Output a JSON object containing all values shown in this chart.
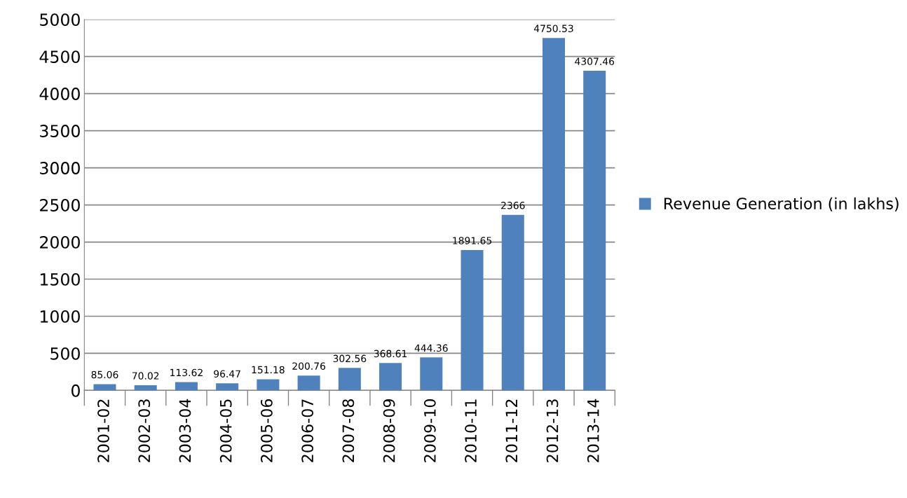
{
  "chart_data": {
    "type": "bar",
    "categories": [
      "2001-02",
      "2002-03",
      "2003-04",
      "2004-05",
      "2005-06",
      "2006-07",
      "2007-08",
      "2008-09",
      "2009-10",
      "2010-11",
      "2011-12",
      "2012-13",
      "2013-14"
    ],
    "series": [
      {
        "name": "Revenue Generation (in lakhs)",
        "color": "#4f81bd",
        "values": [
          85.06,
          70.02,
          113.62,
          96.47,
          151.18,
          200.76,
          302.56,
          368.61,
          444.36,
          1891.65,
          2366,
          4750.53,
          4307.46
        ]
      }
    ],
    "ylim": [
      0,
      5000
    ],
    "yticks": [
      0,
      500,
      1000,
      1500,
      2000,
      2500,
      3000,
      3500,
      4000,
      4500,
      5000
    ],
    "grid": "y",
    "legend": "right",
    "data_labels": true
  }
}
